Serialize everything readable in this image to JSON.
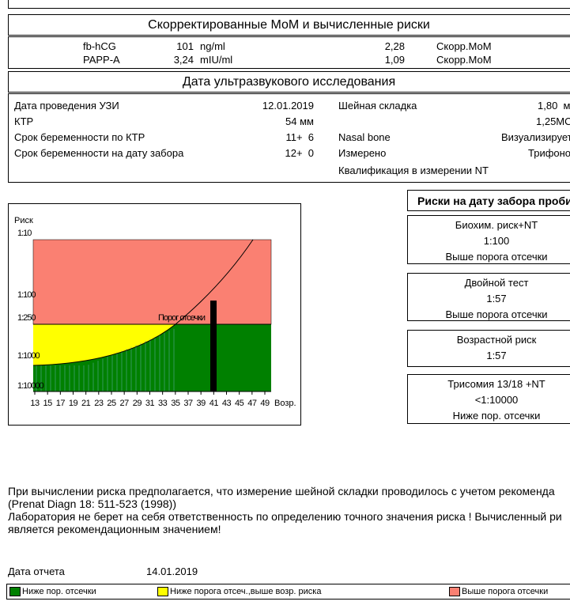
{
  "section1": {
    "title": "Скорректированные МоМ и вычисленные риски",
    "rows": [
      [
        "fb-hCG",
        "101",
        "ng/ml",
        "2,28",
        "Скорр.МоМ"
      ],
      [
        "PAPP-A",
        "3,24",
        "mIU/ml",
        "1,09",
        "Скорр.МоМ"
      ]
    ]
  },
  "section2": {
    "title": "Дата ультразвукового исследования",
    "left": [
      [
        "Дата проведения УЗИ",
        "12.01.2019"
      ],
      [
        "КТР",
        "54 мм"
      ],
      [
        "Срок беременности по КТР",
        "11+  6"
      ],
      [
        "Срок беременности на дату забора",
        "12+  0"
      ]
    ],
    "right": [
      {
        "label": "Шейная складка",
        "value": "1,80  м"
      },
      {
        "value": "1,25МО"
      },
      {
        "label": "Nasal bone",
        "value": "Визуализирует"
      },
      {
        "label": "Измерено",
        "value": "Трифоно"
      },
      {
        "label": "Квалификация в измерении NT"
      }
    ]
  },
  "risk_chart": {
    "y_axis_title": "Риск",
    "y_labels": [
      "1:10",
      "1:100",
      "1:250",
      "1:1000",
      "1:10000"
    ],
    "x_ticks": [
      13,
      15,
      17,
      19,
      21,
      23,
      25,
      27,
      29,
      31,
      33,
      35,
      37,
      39,
      41,
      43,
      45,
      47,
      49
    ],
    "x_axis_title": "Возр.",
    "cutoff_label": "Порог отсечки"
  },
  "risks": {
    "title": "Риски на дату забора проби",
    "boxes": [
      {
        "name": "Биохим. риск+NT",
        "risk": "1:100",
        "status": "Выше порога отсечки"
      },
      {
        "name": "Двойной тест",
        "risk": "1:57",
        "status": "Выше порога отсечки"
      },
      {
        "name": "Возрастной риск",
        "risk": "1:57"
      },
      {
        "name": "Трисомия 13/18 +NT",
        "risk": "<1:10000",
        "status": "Ниже пор. отсечки"
      }
    ]
  },
  "notes": [
    "При вычислении риска предполагается, что измерение шейной складки проводилось с учетом рекоменда",
    "(Prenat Diagn 18: 511-523 (1998))",
    "Лаборатория не берет на себя ответственность по определению точного значения риска ! Вычисленный ри",
    "является рекомендационным значением!"
  ],
  "report_date": {
    "label": "Дата отчета",
    "value": "14.01.2019"
  },
  "legend": [
    {
      "label": "Ниже пор. отсечки",
      "color": "#008000"
    },
    {
      "label": "Ниже порога отсеч.,выше возр. риска",
      "color": "#ffff00"
    },
    {
      "label": "Выше порога отсечки",
      "color": "#fa8072"
    }
  ]
}
